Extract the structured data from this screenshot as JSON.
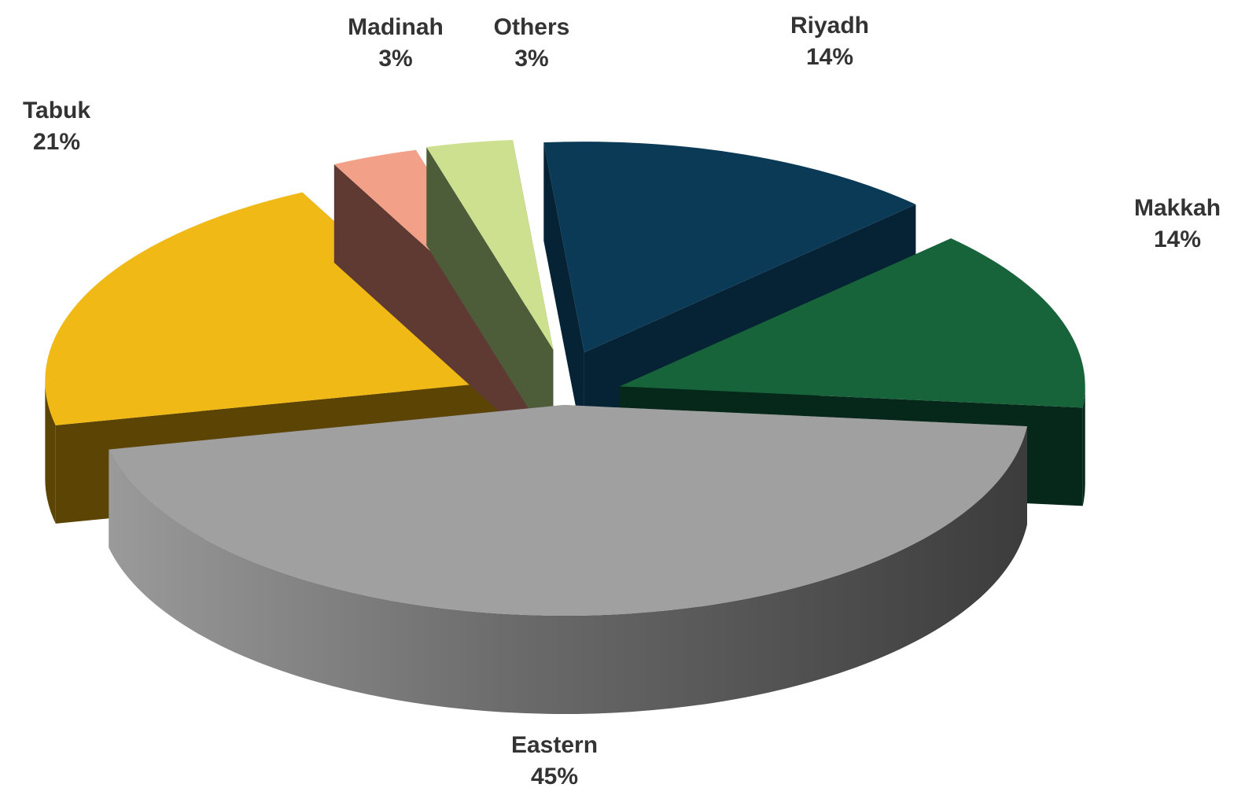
{
  "chart_data": {
    "type": "pie",
    "style": "3d-exploded",
    "title": "",
    "unit": "%",
    "slices": [
      {
        "label": "Riyadh",
        "value": 14,
        "value_label": "14%",
        "top_color": "#0b3a57",
        "side_color": "#062335",
        "exploded": true
      },
      {
        "label": "Makkah",
        "value": 14,
        "value_label": "14%",
        "top_color": "#17643a",
        "side_color": "#05281a",
        "exploded": true
      },
      {
        "label": "Eastern",
        "value": 45,
        "value_label": "45%",
        "top_color": "#a0a0a0",
        "side_color": "#6e6e6e",
        "exploded": false
      },
      {
        "label": "Tabuk",
        "value": 21,
        "value_label": "21%",
        "top_color": "#f0b915",
        "side_color": "#5c4404",
        "exploded": true
      },
      {
        "label": "Madinah",
        "value": 3,
        "value_label": "3%",
        "top_color": "#f2a088",
        "side_color": "#5e3a32",
        "exploded": true
      },
      {
        "label": "Others",
        "value": 3,
        "value_label": "3%",
        "top_color": "#cde08f",
        "side_color": "#4d5c39",
        "exploded": true
      }
    ],
    "legend": "none",
    "data_labels": "outside"
  }
}
